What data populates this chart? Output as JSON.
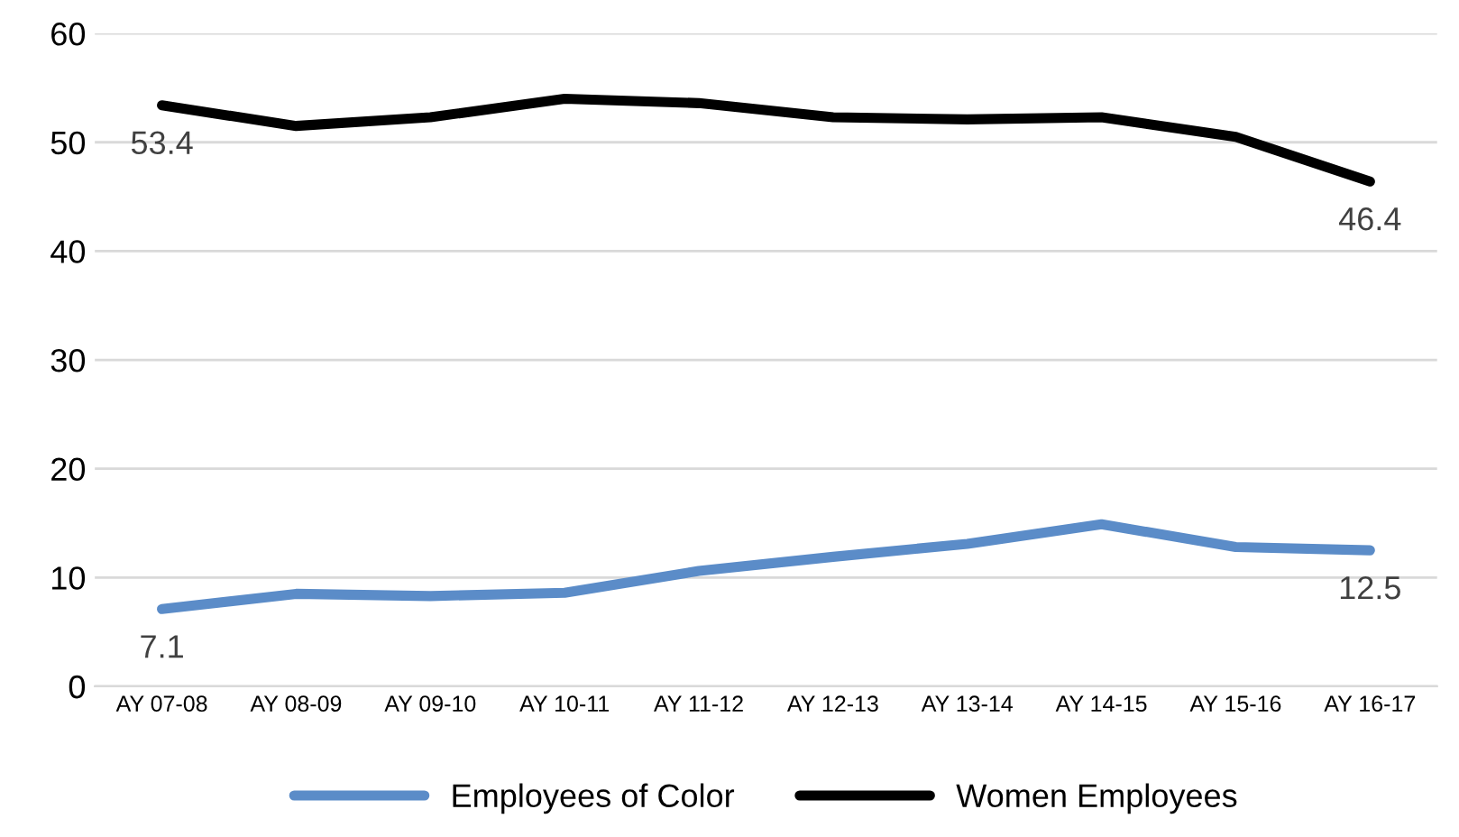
{
  "chart_data": {
    "type": "line",
    "categories": [
      "AY 07-08",
      "AY 08-09",
      "AY 09-10",
      "AY 10-11",
      "AY 11-12",
      "AY 12-13",
      "AY 13-14",
      "AY 14-15",
      "AY 15-16",
      "AY 16-17"
    ],
    "series": [
      {
        "name": "Employees of Color",
        "color": "#5b8cc8",
        "values": [
          7.1,
          8.5,
          8.3,
          8.6,
          10.6,
          11.9,
          13.1,
          14.9,
          12.8,
          12.5
        ],
        "value_labels": [
          "7.1",
          null,
          null,
          null,
          null,
          null,
          null,
          null,
          null,
          "12.5"
        ]
      },
      {
        "name": "Women Employees",
        "color": "#000000",
        "values": [
          53.4,
          51.5,
          52.3,
          54.0,
          53.6,
          52.3,
          52.1,
          52.3,
          50.5,
          46.4
        ],
        "value_labels": [
          "53.4",
          null,
          null,
          null,
          null,
          null,
          null,
          null,
          null,
          "46.4"
        ]
      }
    ],
    "ylim": [
      0,
      60
    ],
    "yticks": [
      0,
      10,
      20,
      30,
      40,
      50,
      60
    ],
    "grid": "y",
    "legend": "bottom",
    "marker": "none",
    "line_style": "solid"
  }
}
